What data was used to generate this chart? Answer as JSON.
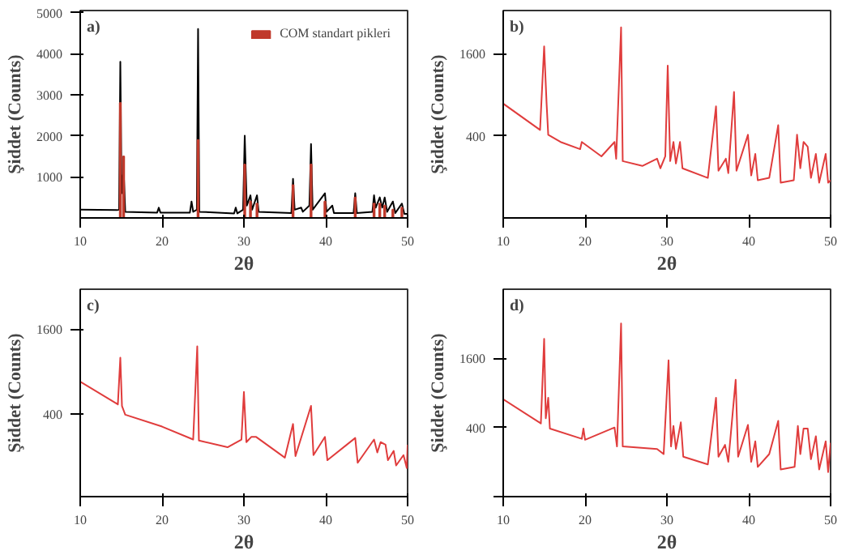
{
  "chart_data": [
    {
      "type": "line",
      "title": "a)",
      "xlabel": "2θ",
      "ylabel": "Şiddet (Counts)",
      "xlim": [
        10,
        50
      ],
      "ylim": [
        0,
        5050
      ],
      "xticks": [
        10,
        20,
        30,
        40,
        50
      ],
      "yticks": [
        1000,
        2000,
        3000,
        4000,
        5000
      ],
      "legend": "top right",
      "series": [
        {
          "color": "#000000",
          "x": [
            10,
            14.5,
            14.75,
            14.9,
            15.05,
            15.3,
            15.5,
            19.4,
            19.6,
            19.8,
            23.4,
            23.6,
            23.8,
            24.25,
            24.4,
            24.55,
            28.8,
            29.0,
            29.2,
            29.9,
            30.1,
            30.35,
            30.8,
            31.0,
            31.6,
            31.8,
            35.8,
            36.0,
            36.2,
            37.0,
            37.2,
            38.0,
            38.2,
            38.4,
            39.9,
            40.1,
            40.8,
            41.0,
            43.4,
            43.6,
            43.8,
            45.7,
            45.9,
            46.1,
            46.6,
            46.9,
            47.2,
            47.5,
            48.2,
            48.5,
            49.3,
            49.6,
            50
          ],
          "values": [
            200,
            190,
            200,
            3800,
            600,
            1200,
            150,
            130,
            250,
            130,
            130,
            400,
            150,
            200,
            4600,
            150,
            110,
            250,
            110,
            200,
            2000,
            300,
            550,
            200,
            550,
            150,
            120,
            950,
            200,
            250,
            150,
            300,
            1800,
            200,
            600,
            150,
            300,
            120,
            120,
            600,
            120,
            150,
            550,
            250,
            500,
            250,
            500,
            150,
            400,
            120,
            350,
            100,
            100
          ]
        },
        {
          "type": "bar",
          "name": "COM standart pikleri",
          "color": "#c0392b",
          "x": [
            14.9,
            15.3,
            24.4,
            30.1,
            30.8,
            31.6,
            36.0,
            38.2,
            39.9,
            43.6,
            45.9,
            46.6,
            47.2,
            48.2,
            49.3
          ],
          "values": [
            2800,
            1500,
            1900,
            1300,
            400,
            350,
            800,
            1300,
            400,
            500,
            350,
            350,
            300,
            200,
            250
          ]
        }
      ]
    },
    {
      "type": "line",
      "title": "b)",
      "xlabel": "2θ",
      "ylabel": "Şiddet (Counts)",
      "xlim": [
        10,
        50
      ],
      "ylim": [
        -800,
        2230
      ],
      "xticks": [
        10,
        20,
        30,
        40,
        50
      ],
      "yticks": [
        400,
        1600
      ],
      "series": [
        {
          "color": "#e03c3c",
          "x": [
            10,
            14.5,
            15.0,
            15.3,
            15.5,
            17,
            19.4,
            19.6,
            22,
            23.6,
            23.8,
            24.4,
            24.6,
            27,
            28.8,
            29.2,
            29.8,
            30.1,
            30.4,
            30.8,
            31.1,
            31.6,
            31.9,
            35,
            36.0,
            36.3,
            37.2,
            37.5,
            38.2,
            38.5,
            39.9,
            40.3,
            40.8,
            41.1,
            42.5,
            43.6,
            43.9,
            45.5,
            45.9,
            46.3,
            46.7,
            47.2,
            47.6,
            48.2,
            48.6,
            49.4,
            49.7,
            50
          ],
          "values": [
            870,
            485,
            1705,
            870,
            414,
            310,
            205,
            310,
            100,
            310,
            65,
            1985,
            30,
            -40,
            65,
            -75,
            100,
            1426,
            30,
            310,
            -5,
            310,
            -75,
            -215,
            830,
            -110,
            65,
            -145,
            1040,
            -110,
            415,
            -180,
            135,
            -250,
            -215,
            555,
            -285,
            -250,
            415,
            -75,
            310,
            240,
            -215,
            135,
            -285,
            135,
            -285,
            -250
          ]
        }
      ]
    },
    {
      "type": "line",
      "title": "c)",
      "xlabel": "2θ",
      "ylabel": "Şiddet (Counts)",
      "xlim": [
        10,
        50
      ],
      "ylim": [
        -780,
        2170
      ],
      "xticks": [
        10,
        20,
        30,
        40,
        50
      ],
      "yticks": [
        400,
        1600
      ],
      "series": [
        {
          "color": "#e03c3c",
          "x": [
            10,
            14.6,
            14.9,
            15.1,
            15.5,
            20,
            23.8,
            24.3,
            24.5,
            28,
            29.7,
            30.0,
            30.3,
            30.9,
            31.5,
            35,
            36.0,
            36.3,
            38.2,
            38.5,
            39.9,
            40.2,
            43.6,
            43.9,
            45.9,
            46.3,
            46.7,
            47.3,
            47.6,
            48.3,
            48.6,
            49.5,
            49.9,
            50
          ],
          "values": [
            856,
            532,
            1195,
            510,
            385,
            216,
            32,
            1357,
            17,
            -78,
            32,
            709,
            -5,
            69,
            69,
            -226,
            253,
            -204,
            510,
            -189,
            69,
            -262,
            54,
            -299,
            32,
            -152,
            -5,
            -42,
            -262,
            -130,
            -336,
            -189,
            -373,
            -42
          ]
        }
      ]
    },
    {
      "type": "line",
      "title": "d)",
      "xlabel": "2θ",
      "ylabel": "Şiddet (Counts)",
      "xlim": [
        10,
        50
      ],
      "ylim": [
        -800,
        2800
      ],
      "xticks": [
        10,
        20,
        30,
        40,
        50
      ],
      "yticks": [
        {
          "value": -800,
          "label": null
        },
        400,
        1600
      ],
      "series": [
        {
          "color": "#e03c3c",
          "x": [
            10,
            14.6,
            15.0,
            15.2,
            15.5,
            15.7,
            19.6,
            19.8,
            20,
            23.6,
            23.9,
            24.4,
            24.6,
            28.8,
            29.6,
            30.2,
            30.5,
            30.8,
            31.1,
            31.7,
            32,
            35,
            36.0,
            36.3,
            37.1,
            37.5,
            38.4,
            38.7,
            39.9,
            40.3,
            40.8,
            41.1,
            42.5,
            43.6,
            43.9,
            45.6,
            46.0,
            46.3,
            46.7,
            47.2,
            47.6,
            48.2,
            48.6,
            49.4,
            49.7,
            50
          ],
          "values": [
            889,
            471,
            1938,
            560,
            916,
            382,
            204,
            382,
            187,
            400,
            71,
            2205,
            71,
            27,
            -62,
            1565,
            71,
            427,
            27,
            489,
            -107,
            -240,
            916,
            -107,
            98,
            -196,
            1227,
            -107,
            444,
            -196,
            160,
            -284,
            -62,
            516,
            -329,
            -284,
            427,
            -62,
            382,
            382,
            -151,
            249,
            -329,
            160,
            -373,
            133
          ]
        }
      ]
    }
  ]
}
